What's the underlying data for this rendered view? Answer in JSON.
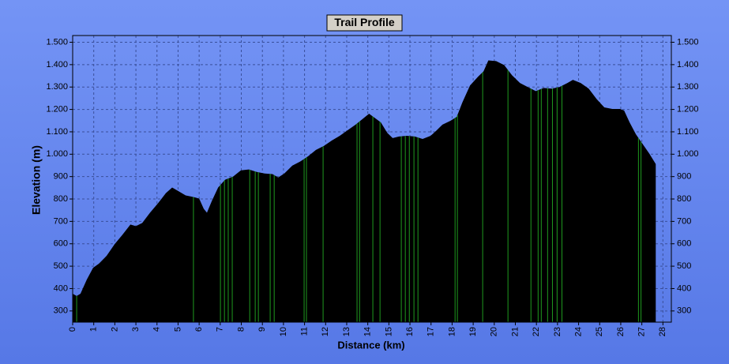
{
  "chart_data": {
    "type": "area",
    "title": "Trail Profile",
    "x_label": "Distance (km)",
    "y_label": "Elevation (m)",
    "x": [
      0,
      0.19,
      0.37,
      0.67,
      0.97,
      1.24,
      1.61,
      1.99,
      2.36,
      2.74,
      3.0,
      3.3,
      3.67,
      4.05,
      4.42,
      4.72,
      4.98,
      5.36,
      5.73,
      6.0,
      6.22,
      6.37,
      6.6,
      6.9,
      7.23,
      7.61,
      7.98,
      8.36,
      8.73,
      9.11,
      9.48,
      9.75,
      10.04,
      10.42,
      10.79,
      11.17,
      11.54,
      11.92,
      12.29,
      12.67,
      13.04,
      13.42,
      13.79,
      14.06,
      14.36,
      14.62,
      14.92,
      15.18,
      15.48,
      15.85,
      16.23,
      16.6,
      16.98,
      17.24,
      17.54,
      17.92,
      18.22,
      18.48,
      18.85,
      19.23,
      19.49,
      19.72,
      20.09,
      20.47,
      20.84,
      21.22,
      21.59,
      21.97,
      22.34,
      22.72,
      23.09,
      23.47,
      23.73,
      24.1,
      24.48,
      24.85,
      25.22,
      25.6,
      25.97,
      26.16,
      26.42,
      26.72,
      27.1,
      27.36,
      27.66
    ],
    "values": [
      377,
      367,
      377,
      440,
      493,
      511,
      546,
      598,
      640,
      686,
      679,
      693,
      739,
      781,
      826,
      851,
      837,
      816,
      809,
      802,
      756,
      739,
      791,
      851,
      886,
      900,
      928,
      932,
      921,
      914,
      911,
      896,
      914,
      949,
      967,
      991,
      1019,
      1037,
      1061,
      1082,
      1107,
      1132,
      1160,
      1181,
      1160,
      1142,
      1096,
      1072,
      1079,
      1082,
      1079,
      1068,
      1082,
      1104,
      1132,
      1149,
      1167,
      1230,
      1307,
      1346,
      1370,
      1419,
      1416,
      1398,
      1353,
      1318,
      1300,
      1282,
      1296,
      1293,
      1300,
      1318,
      1332,
      1318,
      1293,
      1247,
      1209,
      1202,
      1202,
      1195,
      1142,
      1089,
      1037,
      1002,
      956
    ],
    "color": "#000000",
    "markers": {
      "x": [
        0.19,
        5.73,
        7.01,
        7.2,
        7.38,
        7.57,
        8.4,
        8.66,
        8.81,
        9.37,
        9.56,
        10.98,
        11.09,
        11.88,
        13.49,
        13.61,
        14.24,
        14.58,
        15.59,
        15.78,
        15.97,
        16.19,
        16.38,
        18.14,
        18.25,
        19.45,
        20.65,
        21.74,
        22.08,
        22.23,
        22.53,
        22.76,
        22.98,
        23.21,
        26.84,
        26.96
      ],
      "color": "#1f9a1f"
    },
    "xlim": [
      0,
      28.4
    ],
    "xticks": [
      0,
      1,
      2,
      3,
      4,
      5,
      6,
      7,
      8,
      9,
      10,
      11,
      12,
      13,
      14,
      15,
      16,
      17,
      18,
      19,
      20,
      21,
      22,
      23,
      24,
      25,
      26,
      27,
      28
    ],
    "ylim": [
      250,
      1530
    ],
    "yticks": [
      300,
      400,
      500,
      600,
      700,
      800,
      900,
      {
        "value": 1000,
        "label": "1.000"
      },
      {
        "value": 1100,
        "label": "1.100"
      },
      {
        "value": 1200,
        "label": "1.200"
      },
      {
        "value": 1300,
        "label": "1.300"
      },
      {
        "value": 1400,
        "label": "1.400"
      },
      {
        "value": 1500,
        "label": "1.500"
      }
    ],
    "grid": true
  }
}
